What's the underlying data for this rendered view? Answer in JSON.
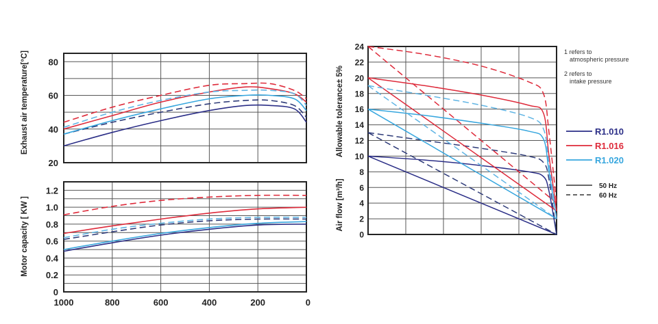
{
  "colors": {
    "R1010": "#2a2d86",
    "R1016": "#de2a3a",
    "R1020": "#36a6de",
    "R1010_dash": "#2d3a78",
    "R1020_dash": "#5fb4e4"
  },
  "chart_data": [
    {
      "type": "line",
      "ylabel": "Exhaust air temperature[°C]",
      "xlim": [
        1000,
        0
      ],
      "ylim": [
        20,
        85
      ],
      "x_ticks": [
        "1000",
        "800",
        "600",
        "400",
        "200",
        "0"
      ],
      "y_ticks": [
        "20",
        "40",
        "60",
        "80"
      ],
      "x": [
        1000,
        800,
        600,
        400,
        250,
        150,
        50,
        0
      ],
      "series": [
        {
          "group": "R1.010",
          "style": "solid",
          "color": "#2a2d86",
          "values": [
            30,
            38,
            45,
            51,
            54,
            54,
            52,
            44
          ]
        },
        {
          "group": "R1.010",
          "style": "dashed",
          "color": "#2d3a78",
          "values": [
            37,
            44,
            50,
            55,
            57,
            57,
            54,
            47
          ]
        },
        {
          "group": "R1.016",
          "style": "solid",
          "color": "#de2a3a",
          "values": [
            40,
            48,
            56,
            62,
            65,
            64,
            61,
            56
          ]
        },
        {
          "group": "R1.016",
          "style": "dashed",
          "color": "#de2a3a",
          "values": [
            44,
            53,
            60,
            66,
            67,
            67,
            63,
            58
          ]
        },
        {
          "group": "R1.020",
          "style": "solid",
          "color": "#36a6de",
          "values": [
            37,
            45,
            52,
            58,
            60,
            60,
            58,
            51
          ]
        },
        {
          "group": "R1.020",
          "style": "dashed",
          "color": "#5fb4e4",
          "values": [
            41,
            50,
            57,
            62,
            63,
            63,
            61,
            54
          ]
        }
      ]
    },
    {
      "type": "line",
      "ylabel": "Motor capacity [ KW ]",
      "xlim": [
        1000,
        0
      ],
      "ylim": [
        0,
        1.3
      ],
      "x_ticks": [
        "1000",
        "800",
        "600",
        "400",
        "200",
        "0"
      ],
      "y_ticks": [
        "0",
        "0.2",
        "0.4",
        "0.6",
        "0.8",
        "1.0",
        "1.2"
      ],
      "x": [
        1000,
        800,
        600,
        400,
        200,
        0
      ],
      "series": [
        {
          "group": "R1.010",
          "style": "solid",
          "color": "#2a2d86",
          "values": [
            0.48,
            0.58,
            0.67,
            0.74,
            0.79,
            0.8
          ]
        },
        {
          "group": "R1.010",
          "style": "dashed",
          "color": "#2d3a78",
          "values": [
            0.62,
            0.71,
            0.79,
            0.84,
            0.86,
            0.86
          ]
        },
        {
          "group": "R1.016",
          "style": "solid",
          "color": "#de2a3a",
          "values": [
            0.69,
            0.78,
            0.86,
            0.93,
            0.98,
            1.0
          ]
        },
        {
          "group": "R1.016",
          "style": "dashed",
          "color": "#de2a3a",
          "values": [
            0.91,
            1.01,
            1.08,
            1.12,
            1.14,
            1.14
          ]
        },
        {
          "group": "R1.020",
          "style": "solid",
          "color": "#36a6de",
          "values": [
            0.5,
            0.6,
            0.69,
            0.76,
            0.81,
            0.83
          ]
        },
        {
          "group": "R1.020",
          "style": "dashed",
          "color": "#5fb4e4",
          "values": [
            0.64,
            0.74,
            0.81,
            0.86,
            0.88,
            0.88
          ]
        }
      ]
    },
    {
      "type": "line",
      "ylabel": "Allowable tolerance± 5%",
      "ylabel2": "Air flow [m³/h]",
      "ylim": [
        0,
        24
      ],
      "xlim": [
        0,
        1
      ],
      "y_ticks": [
        "0",
        "2",
        "4",
        "6",
        "8",
        "10",
        "12",
        "14",
        "16",
        "18",
        "20",
        "22",
        "24"
      ],
      "notes": [
        "1  refers to",
        "atmospheric pressure",
        "2  refers to",
        "intake  pressure"
      ],
      "legend": [
        {
          "label": "R1.010",
          "color": "#2a2d86"
        },
        {
          "label": "R1.016",
          "color": "#de2a3a"
        },
        {
          "label": "R1.020",
          "color": "#36a6de"
        }
      ],
      "style_legend": [
        {
          "label": "50 Hz",
          "style": "solid"
        },
        {
          "label": "60 Hz",
          "style": "dashed"
        }
      ],
      "series": [
        {
          "group": "R1.010",
          "curve": "1",
          "style": "solid",
          "color": "#2a2d86",
          "x": [
            0,
            0.3,
            0.6,
            0.85,
            0.93,
            0.96,
            1.0
          ],
          "values": [
            10,
            9.5,
            8.8,
            8.0,
            7.4,
            5.5,
            0
          ]
        },
        {
          "group": "R1.010",
          "curve": "2",
          "style": "solid",
          "color": "#2a2d86",
          "x": [
            0,
            1.0
          ],
          "values": [
            10,
            0
          ]
        },
        {
          "group": "R1.010",
          "curve": "1",
          "style": "dashed",
          "color": "#2d3a78",
          "x": [
            0,
            0.3,
            0.6,
            0.85,
            0.93,
            0.96,
            1.0
          ],
          "values": [
            13,
            12,
            11,
            10,
            9.2,
            7,
            0
          ]
        },
        {
          "group": "R1.010",
          "curve": "2",
          "style": "dashed",
          "color": "#2d3a78",
          "x": [
            0,
            1.0
          ],
          "values": [
            13,
            0
          ]
        },
        {
          "group": "R1.016",
          "curve": "1",
          "style": "solid",
          "color": "#de2a3a",
          "x": [
            0,
            0.3,
            0.6,
            0.85,
            0.93,
            0.96,
            1.0
          ],
          "values": [
            20,
            19,
            17.8,
            16.5,
            15.5,
            10,
            3
          ]
        },
        {
          "group": "R1.016",
          "curve": "2",
          "style": "solid",
          "color": "#de2a3a",
          "x": [
            0,
            1.0
          ],
          "values": [
            20,
            3
          ]
        },
        {
          "group": "R1.016",
          "curve": "1",
          "style": "dashed",
          "color": "#de2a3a",
          "x": [
            0,
            0.3,
            0.6,
            0.85,
            0.93,
            0.96,
            1.0
          ],
          "values": [
            24,
            23,
            21.5,
            19.5,
            18,
            13,
            4
          ]
        },
        {
          "group": "R1.016",
          "curve": "2",
          "style": "dashed",
          "color": "#de2a3a",
          "x": [
            0,
            1.0
          ],
          "values": [
            24,
            4
          ]
        },
        {
          "group": "R1.020",
          "curve": "1",
          "style": "solid",
          "color": "#36a6de",
          "x": [
            0,
            0.3,
            0.6,
            0.85,
            0.93,
            0.96,
            1.0
          ],
          "values": [
            16,
            15.2,
            14.2,
            13.2,
            12.2,
            8,
            2
          ]
        },
        {
          "group": "R1.020",
          "curve": "2",
          "style": "solid",
          "color": "#36a6de",
          "x": [
            0,
            1.0
          ],
          "values": [
            16,
            2
          ]
        },
        {
          "group": "R1.020",
          "curve": "1",
          "style": "dashed",
          "color": "#5fb4e4",
          "x": [
            0,
            0.3,
            0.6,
            0.85,
            0.93,
            0.96,
            1.0
          ],
          "values": [
            19,
            17.8,
            16.5,
            15,
            13.5,
            9,
            2
          ]
        },
        {
          "group": "R1.020",
          "curve": "2",
          "style": "dashed",
          "color": "#5fb4e4",
          "x": [
            0,
            1.0
          ],
          "values": [
            19,
            2
          ]
        }
      ]
    }
  ]
}
